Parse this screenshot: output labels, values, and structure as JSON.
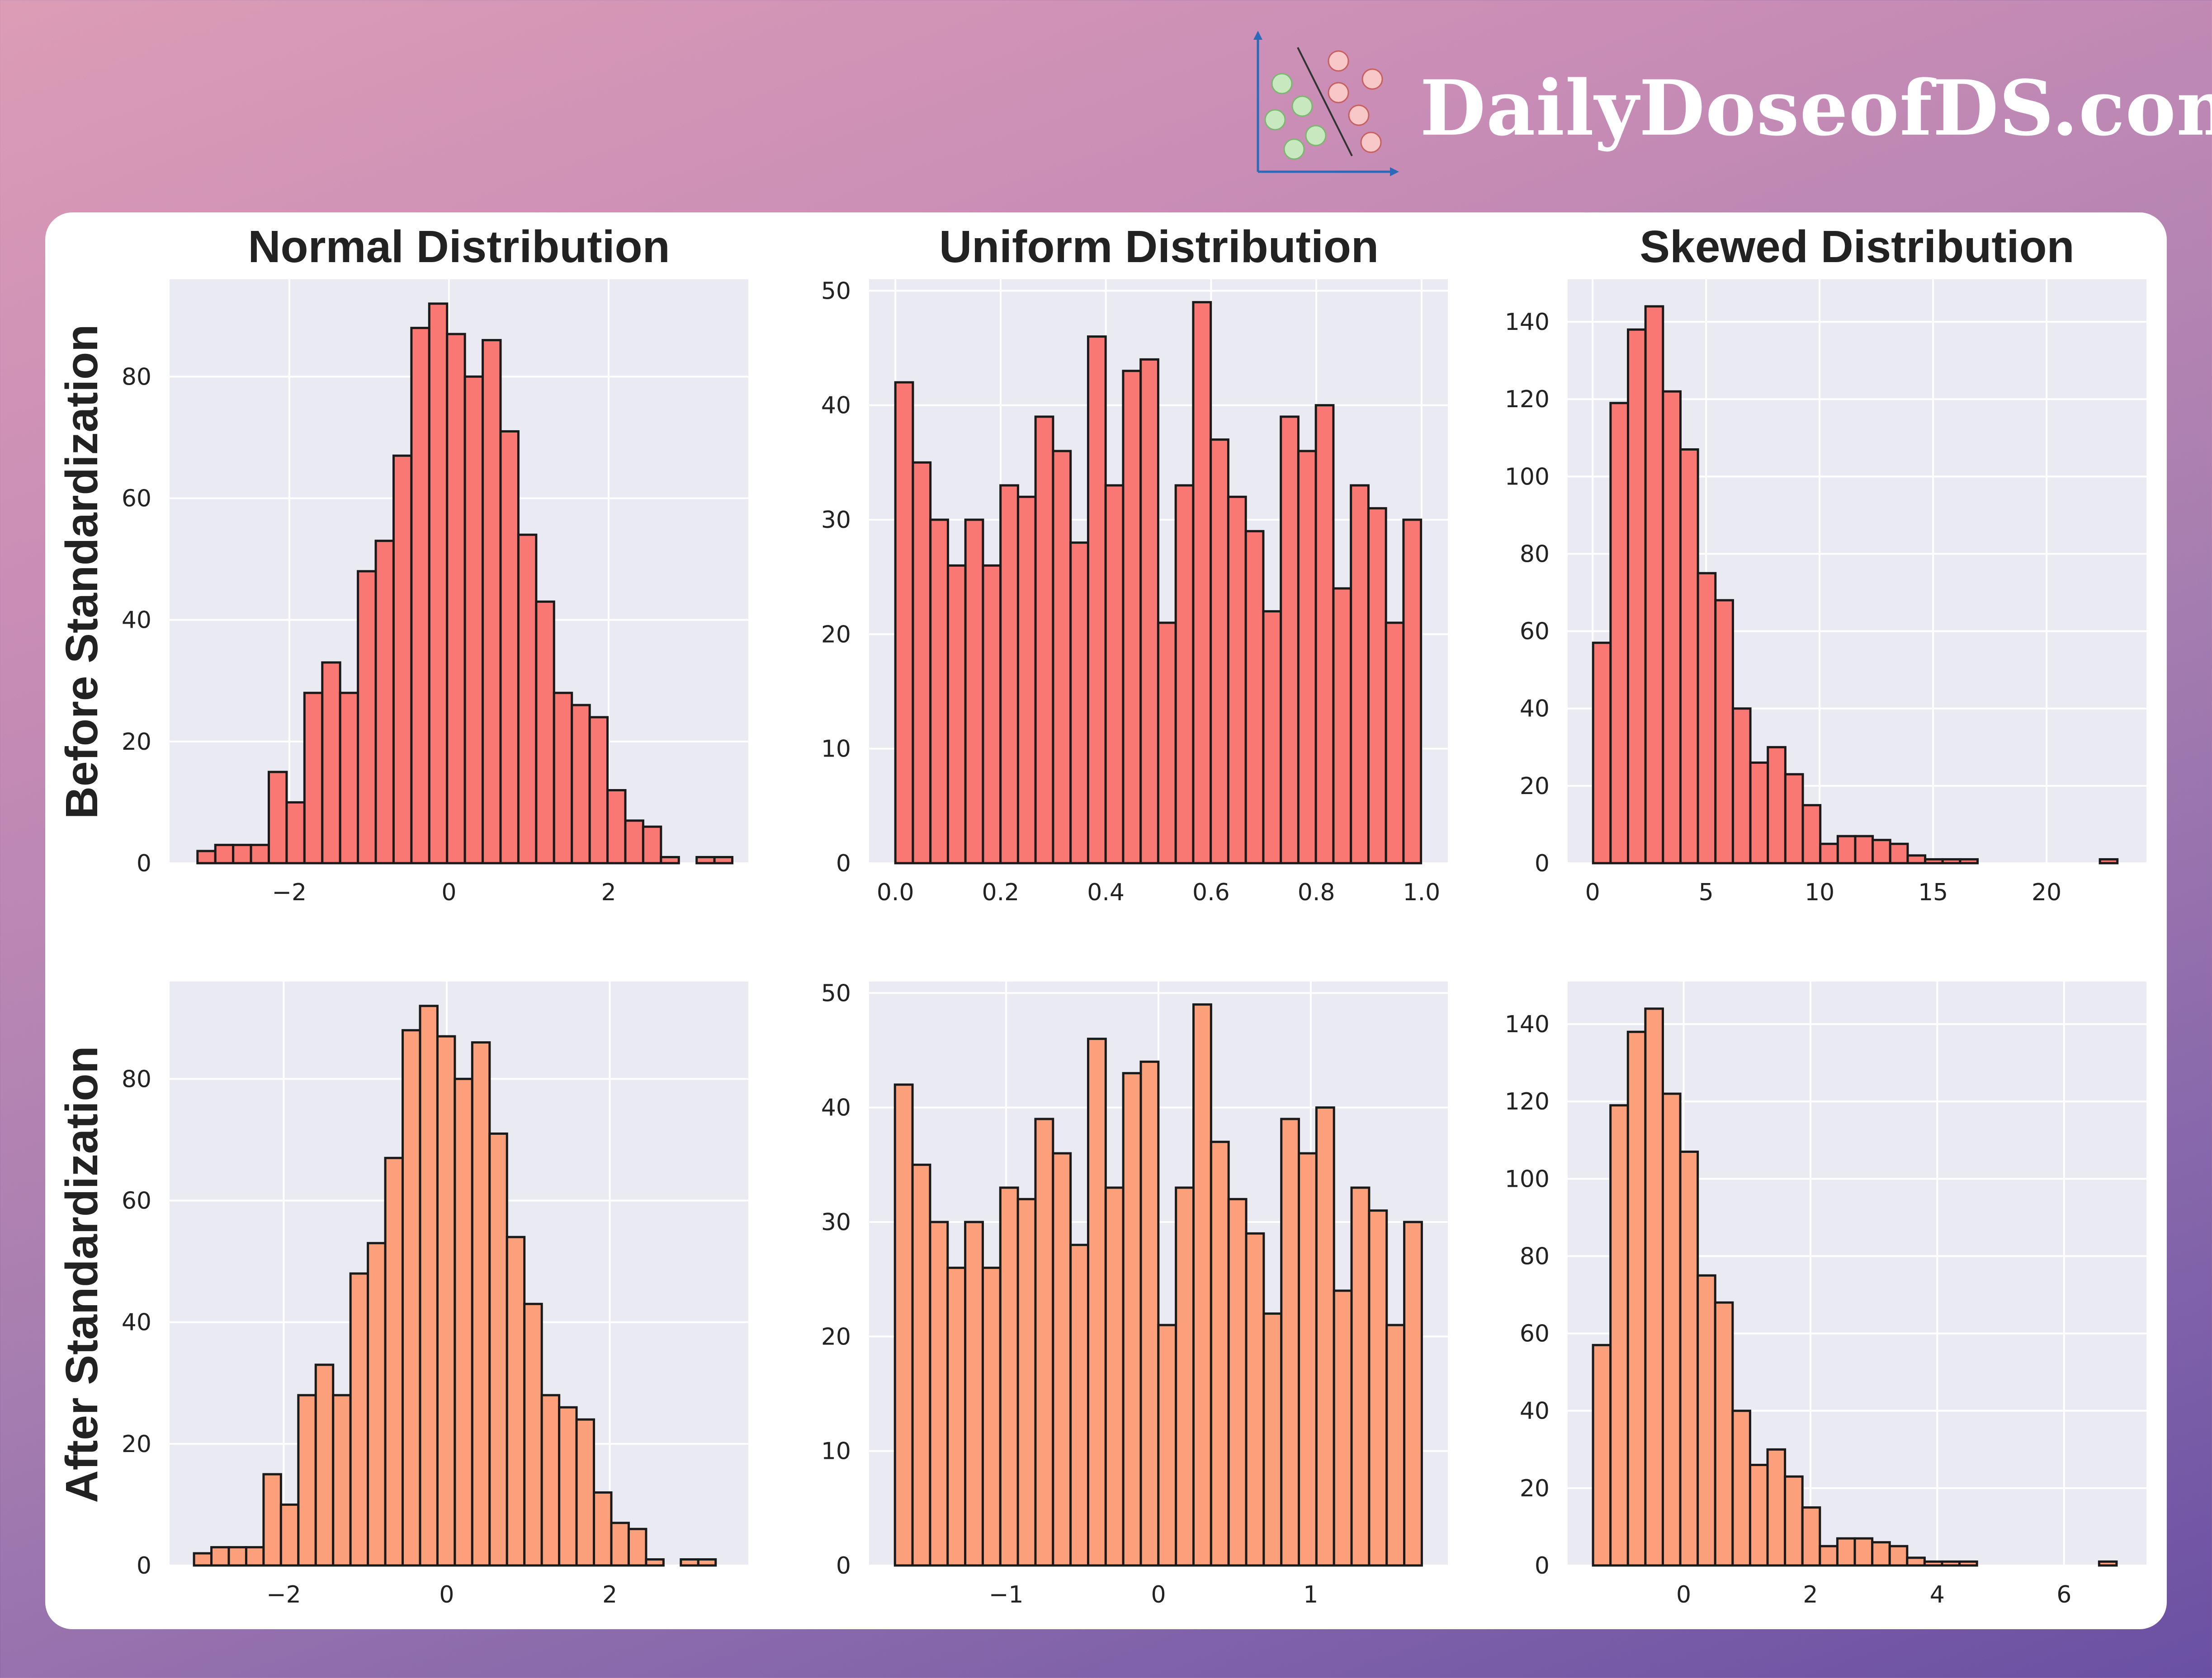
{
  "brand": {
    "name": "DailyDoseofDS.com",
    "logo_icon": "scatter-classifier-logo-icon",
    "colors": {
      "green": "#c8e8c0",
      "pink": "#f8c8c8",
      "axis": "#2a6ab8"
    }
  },
  "colors": {
    "before_fill": "#fa7874",
    "after_fill": "#fca07c",
    "plot_bg": "#eaeaf2",
    "edge": "#1a1a1a"
  },
  "column_titles": [
    "Normal Distribution",
    "Uniform Distribution",
    "Skewed Distribution"
  ],
  "row_labels": [
    "Before Standardization",
    "After Standardization"
  ],
  "chart_data": [
    {
      "type": "bar",
      "title": "Normal Distribution",
      "ylabel": "Before Standardization",
      "x_bin_start": -3.15,
      "x_bin_width": 0.2233,
      "values": [
        2,
        3,
        3,
        3,
        15,
        10,
        28,
        33,
        28,
        48,
        53,
        67,
        88,
        92,
        87,
        80,
        86,
        71,
        54,
        43,
        28,
        26,
        24,
        12,
        7,
        6,
        1,
        0,
        1,
        1
      ],
      "xlim": [
        -3.5,
        3.75
      ],
      "ylim": [
        0,
        96
      ],
      "xticks": [
        -2,
        0,
        2
      ],
      "xtick_labels": [
        "−2",
        "0",
        "2"
      ],
      "yticks": [
        0,
        20,
        40,
        60,
        80
      ],
      "ytick_labels": [
        "0",
        "20",
        "40",
        "60",
        "80"
      ]
    },
    {
      "type": "bar",
      "title": "Uniform Distribution",
      "ylabel": "",
      "x_bin_start": 0.0,
      "x_bin_width": 0.0333,
      "values": [
        42,
        35,
        30,
        26,
        30,
        26,
        33,
        32,
        39,
        36,
        28,
        46,
        33,
        43,
        44,
        21,
        33,
        49,
        37,
        32,
        29,
        22,
        39,
        36,
        40,
        24,
        33,
        31,
        21,
        30
      ],
      "xlim": [
        -0.05,
        1.05
      ],
      "ylim": [
        0,
        51
      ],
      "xticks": [
        0,
        0.2,
        0.4,
        0.6,
        0.8,
        1.0
      ],
      "xtick_labels": [
        "0.0",
        "0.2",
        "0.4",
        "0.6",
        "0.8",
        "1.0"
      ],
      "yticks": [
        0,
        10,
        20,
        30,
        40,
        50
      ],
      "ytick_labels": [
        "0",
        "10",
        "20",
        "30",
        "40",
        "50"
      ]
    },
    {
      "type": "bar",
      "title": "Skewed Distribution",
      "ylabel": "",
      "x_bin_start": 0.02,
      "x_bin_width": 0.77,
      "values": [
        57,
        119,
        138,
        144,
        122,
        107,
        75,
        68,
        40,
        26,
        30,
        23,
        15,
        5,
        7,
        7,
        6,
        5,
        2,
        1,
        1,
        1,
        0,
        0,
        0,
        0,
        0,
        0,
        0,
        1
      ],
      "xlim": [
        -1.1,
        24.4
      ],
      "ylim": [
        0,
        151
      ],
      "xticks": [
        0,
        5,
        10,
        15,
        20
      ],
      "xtick_labels": [
        "0",
        "5",
        "10",
        "15",
        "20"
      ],
      "yticks": [
        0,
        20,
        40,
        60,
        80,
        100,
        120,
        140
      ],
      "ytick_labels": [
        "0",
        "20",
        "40",
        "60",
        "80",
        "100",
        "120",
        "140"
      ]
    },
    {
      "type": "bar",
      "title": "",
      "ylabel": "After Standardization",
      "x_bin_start": -3.1,
      "x_bin_width": 0.2133,
      "values": [
        2,
        3,
        3,
        3,
        15,
        10,
        28,
        33,
        28,
        48,
        53,
        67,
        88,
        92,
        87,
        80,
        86,
        71,
        54,
        43,
        28,
        26,
        24,
        12,
        7,
        6,
        1,
        0,
        1,
        1
      ],
      "xlim": [
        -3.4,
        3.7
      ],
      "ylim": [
        0,
        96
      ],
      "xticks": [
        -2,
        0,
        2
      ],
      "xtick_labels": [
        "−2",
        "0",
        "2"
      ],
      "yticks": [
        0,
        20,
        40,
        60,
        80
      ],
      "ytick_labels": [
        "0",
        "20",
        "40",
        "60",
        "80"
      ]
    },
    {
      "type": "bar",
      "title": "",
      "ylabel": "",
      "x_bin_start": -1.73,
      "x_bin_width": 0.1153,
      "values": [
        42,
        35,
        30,
        26,
        30,
        26,
        33,
        32,
        39,
        36,
        28,
        46,
        33,
        43,
        44,
        21,
        33,
        49,
        37,
        32,
        29,
        22,
        39,
        36,
        40,
        24,
        33,
        31,
        21,
        30
      ],
      "xlim": [
        -1.9,
        1.9
      ],
      "ylim": [
        0,
        51
      ],
      "xticks": [
        -1,
        0,
        1
      ],
      "xtick_labels": [
        "−1",
        "0",
        "1"
      ],
      "yticks": [
        0,
        10,
        20,
        30,
        40,
        50
      ],
      "ytick_labels": [
        "0",
        "10",
        "20",
        "30",
        "40",
        "50"
      ]
    },
    {
      "type": "bar",
      "title": "",
      "ylabel": "",
      "x_bin_start": -1.43,
      "x_bin_width": 0.2753,
      "values": [
        57,
        119,
        138,
        144,
        122,
        107,
        75,
        68,
        40,
        26,
        30,
        23,
        15,
        5,
        7,
        7,
        6,
        5,
        2,
        1,
        1,
        1,
        0,
        0,
        0,
        0,
        0,
        0,
        0,
        1
      ],
      "xlim": [
        -1.83,
        7.3
      ],
      "ylim": [
        0,
        151
      ],
      "xticks": [
        0,
        2,
        4,
        6
      ],
      "xtick_labels": [
        "0",
        "2",
        "4",
        "6"
      ],
      "yticks": [
        0,
        20,
        40,
        60,
        80,
        100,
        120,
        140
      ],
      "ytick_labels": [
        "0",
        "20",
        "40",
        "60",
        "80",
        "100",
        "120",
        "140"
      ]
    }
  ]
}
